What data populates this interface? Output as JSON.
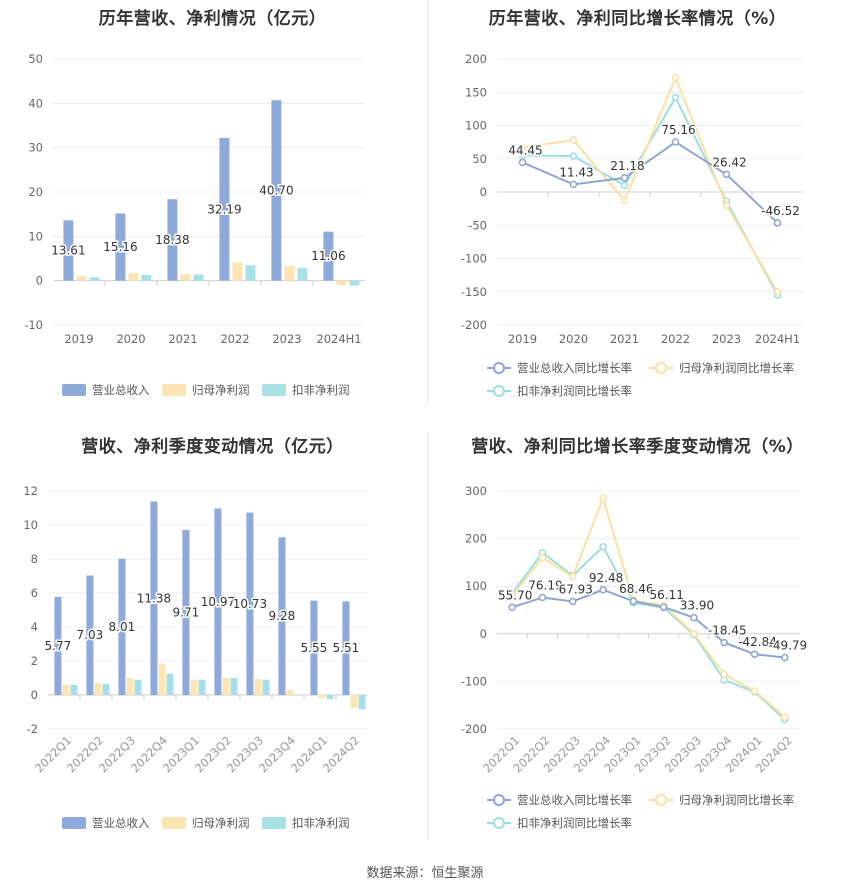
{
  "source": "数据来源：恒生聚源",
  "legend_labels": {
    "revenue": "营业总收入",
    "net_profit": "归母净利润",
    "deducted_profit": "扣非净利润",
    "revenue_growth": "营业总收入同比增长率",
    "net_profit_growth": "归母净利润同比增长率",
    "deducted_growth": "扣非净利润同比增长率"
  },
  "colors": {
    "revenue": "#8eaadb",
    "net_profit": "#fde4b3",
    "deducted_profit": "#a8e1e3",
    "revenue_line": "#8ea4d2",
    "net_profit_line": "#fde0a0",
    "deducted_line": "#9adfe0"
  },
  "chart_data": [
    {
      "id": "annual_bar",
      "type": "bar",
      "title": "历年营收、净利情况（亿元）",
      "categories": [
        "2019",
        "2020",
        "2021",
        "2022",
        "2023",
        "2024H1"
      ],
      "ylim": [
        -10,
        50
      ],
      "yticks": [
        -10,
        0,
        10,
        20,
        30,
        40,
        50
      ],
      "series": [
        {
          "name": "营业总收入",
          "values": [
            13.61,
            15.16,
            18.38,
            32.19,
            40.7,
            11.06
          ],
          "labels": [
            "13.61",
            "15.16",
            "18.38",
            "32.19",
            "40.70",
            "11.06"
          ]
        },
        {
          "name": "归母净利润",
          "values": [
            1.0,
            1.7,
            1.5,
            4.1,
            3.3,
            -1.0
          ]
        },
        {
          "name": "扣非净利润",
          "values": [
            0.8,
            1.3,
            1.4,
            3.5,
            2.9,
            -1.1
          ]
        }
      ],
      "grid": true,
      "legend": "bottom"
    },
    {
      "id": "annual_growth",
      "type": "line",
      "title": "历年营收、净利同比增长率情况（%）",
      "categories": [
        "2019",
        "2020",
        "2021",
        "2022",
        "2023",
        "2024H1"
      ],
      "ylim": [
        -200,
        200
      ],
      "yticks": [
        -200,
        -150,
        -100,
        -50,
        0,
        50,
        100,
        150,
        200
      ],
      "series": [
        {
          "name": "营业总收入同比增长率",
          "values": [
            44.45,
            11.43,
            21.18,
            75.16,
            26.42,
            -46.52
          ],
          "labels": [
            "44.45",
            "11.43",
            "21.18",
            "75.16",
            "26.42",
            "-46.52"
          ]
        },
        {
          "name": "归母净利润同比增长率",
          "values": [
            67,
            78,
            -13,
            172,
            -20,
            -150
          ]
        },
        {
          "name": "扣非净利润同比增长率",
          "values": [
            55,
            54,
            10,
            142,
            -14,
            -155
          ]
        }
      ],
      "grid": true,
      "legend": "bottom"
    },
    {
      "id": "quarterly_bar",
      "type": "bar",
      "title": "营收、净利季度变动情况（亿元）",
      "categories": [
        "2022Q1",
        "2022Q2",
        "2022Q3",
        "2022Q4",
        "2023Q1",
        "2023Q2",
        "2023Q3",
        "2023Q4",
        "2024Q1",
        "2024Q2"
      ],
      "ylim": [
        -2,
        12
      ],
      "yticks": [
        -2,
        0,
        2,
        4,
        6,
        8,
        10,
        12
      ],
      "series": [
        {
          "name": "营业总收入",
          "values": [
            5.77,
            7.03,
            8.01,
            11.38,
            9.71,
            10.97,
            10.73,
            9.28,
            5.55,
            5.51
          ],
          "labels": [
            "5.77",
            "7.03",
            "8.01",
            "11.38",
            "9.71",
            "10.97",
            "10.73",
            "9.28",
            "5.55",
            "5.51"
          ]
        },
        {
          "name": "归母净利润",
          "values": [
            0.6,
            0.7,
            1.0,
            1.85,
            0.9,
            1.0,
            0.95,
            0.3,
            -0.2,
            -0.75
          ]
        },
        {
          "name": "扣非净利润",
          "values": [
            0.6,
            0.65,
            0.9,
            1.25,
            0.9,
            1.0,
            0.9,
            0.0,
            -0.25,
            -0.85
          ]
        }
      ],
      "grid": true,
      "legend": "bottom"
    },
    {
      "id": "quarterly_growth",
      "type": "line",
      "title": "营收、净利同比增长率季度变动情况（%）",
      "categories": [
        "2022Q1",
        "2022Q2",
        "2022Q3",
        "2022Q4",
        "2023Q1",
        "2023Q2",
        "2023Q3",
        "2023Q4",
        "2024Q1",
        "2024Q2"
      ],
      "ylim": [
        -200,
        300
      ],
      "yticks": [
        -200,
        -100,
        0,
        100,
        200,
        300
      ],
      "series": [
        {
          "name": "营业总收入同比增长率",
          "values": [
            55.7,
            76.19,
            67.93,
            92.48,
            68.46,
            56.11,
            33.9,
            -18.45,
            -42.84,
            -49.79
          ],
          "labels": [
            "55.70",
            "76.19",
            "67.93",
            "92.48",
            "68.46",
            "56.11",
            "33.90",
            "-18.45",
            "-42.84",
            "-49.79"
          ]
        },
        {
          "name": "归母净利润同比增长率",
          "values": [
            80,
            160,
            120,
            285,
            70,
            60,
            0,
            -85,
            -120,
            -175
          ]
        },
        {
          "name": "扣非净利润同比增长率",
          "values": [
            85,
            170,
            122,
            183,
            65,
            55,
            -2,
            -97,
            -122,
            -180
          ]
        }
      ],
      "grid": true,
      "legend": "bottom"
    }
  ]
}
